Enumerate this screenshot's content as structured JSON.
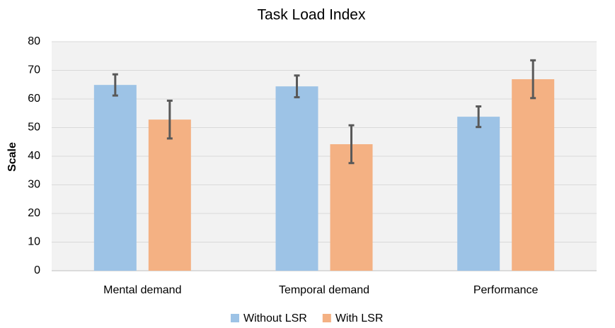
{
  "chart_data": {
    "type": "bar",
    "title": "Task Load Index",
    "y_label": "Scale",
    "categories": [
      "Mental demand",
      "Temporal demand",
      "Performance"
    ],
    "series": [
      {
        "name": "Without LSR",
        "color": "#9dc3e6",
        "values": [
          64.9,
          64.4,
          53.8
        ],
        "errors": [
          3.7,
          3.8,
          3.6
        ]
      },
      {
        "name": "With LSR",
        "color": "#f4b183",
        "values": [
          52.8,
          44.2,
          66.9
        ],
        "errors": [
          6.6,
          6.6,
          6.6
        ]
      }
    ],
    "ylim": [
      0,
      80
    ],
    "yticks": [
      0,
      10,
      20,
      30,
      40,
      50,
      60,
      70,
      80
    ],
    "grid": true,
    "legend": "bottom"
  }
}
